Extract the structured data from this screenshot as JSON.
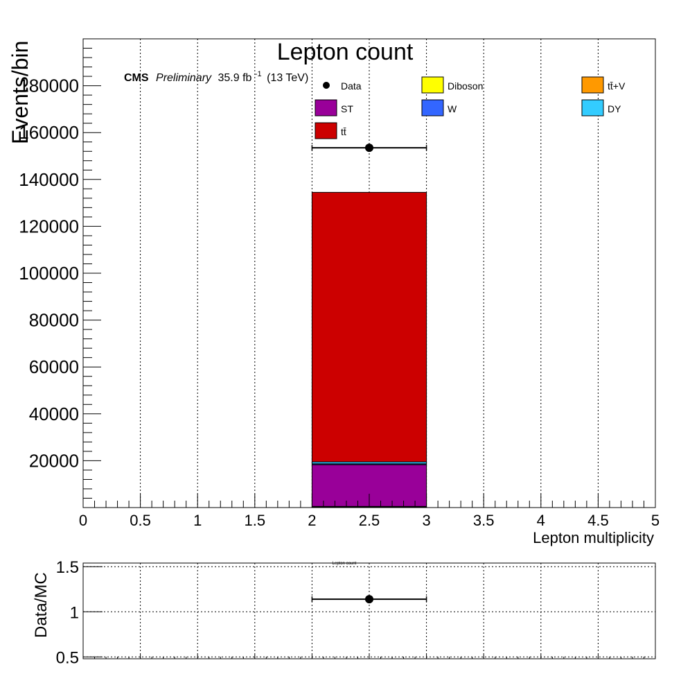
{
  "chart_data": [
    {
      "type": "bar",
      "title": "Lepton count",
      "xlabel": "Lepton multiplicity",
      "ylabel": "Events/bin",
      "xlim": [
        0,
        5
      ],
      "ylim": [
        0,
        200000
      ],
      "x_ticks": [
        "0",
        "0.5",
        "1",
        "1.5",
        "2",
        "2.5",
        "3",
        "3.5",
        "4",
        "4.5",
        "5"
      ],
      "y_ticks": [
        "20000",
        "40000",
        "60000",
        "80000",
        "100000",
        "120000",
        "140000",
        "160000",
        "180000"
      ],
      "grid": true,
      "cms_label": {
        "cms": "CMS",
        "preliminary": "Preliminary",
        "lumi_prefix": "35.9 fb",
        "lumi_exp": "-1",
        "energy": "(13 TeV)"
      },
      "legend": {
        "placement": "top",
        "entries": [
          {
            "label": "Data",
            "marker": "point"
          },
          {
            "label": "Diboson",
            "color": "#ffff00"
          },
          {
            "label": "tt̄+V",
            "color": "#ff9900"
          },
          {
            "label": "ST",
            "color": "#990099"
          },
          {
            "label": "W",
            "color": "#3366ff"
          },
          {
            "label": "DY",
            "color": "#33ccff"
          },
          {
            "label": "tt̄",
            "color": "#cc0000"
          }
        ]
      },
      "stack": {
        "bin": [
          2,
          3
        ],
        "series": [
          {
            "name": "Diboson",
            "color": "#ffff00",
            "value": 300
          },
          {
            "name": "tt̄+V",
            "color": "#ff9900",
            "value": 200
          },
          {
            "name": "ST",
            "color": "#990099",
            "value": 17800
          },
          {
            "name": "W",
            "color": "#3366ff",
            "value": 400
          },
          {
            "name": "DY",
            "color": "#33ccff",
            "value": 800
          },
          {
            "name": "tt̄",
            "color": "#cc0000",
            "value": 115000
          }
        ]
      },
      "data_points": [
        {
          "name": "Data",
          "x": 2.5,
          "xerr": 0.5,
          "y": 153500
        }
      ]
    },
    {
      "type": "scatter",
      "title": "Lepton count",
      "ylabel": "Data/MC",
      "xlim": [
        0,
        5
      ],
      "ylim": [
        0.5,
        1.5
      ],
      "y_ticks": [
        "0.5",
        "1",
        "1.5"
      ],
      "grid": true,
      "points": [
        {
          "x": 2.5,
          "xerr": 0.5,
          "y": 1.14
        }
      ]
    }
  ]
}
